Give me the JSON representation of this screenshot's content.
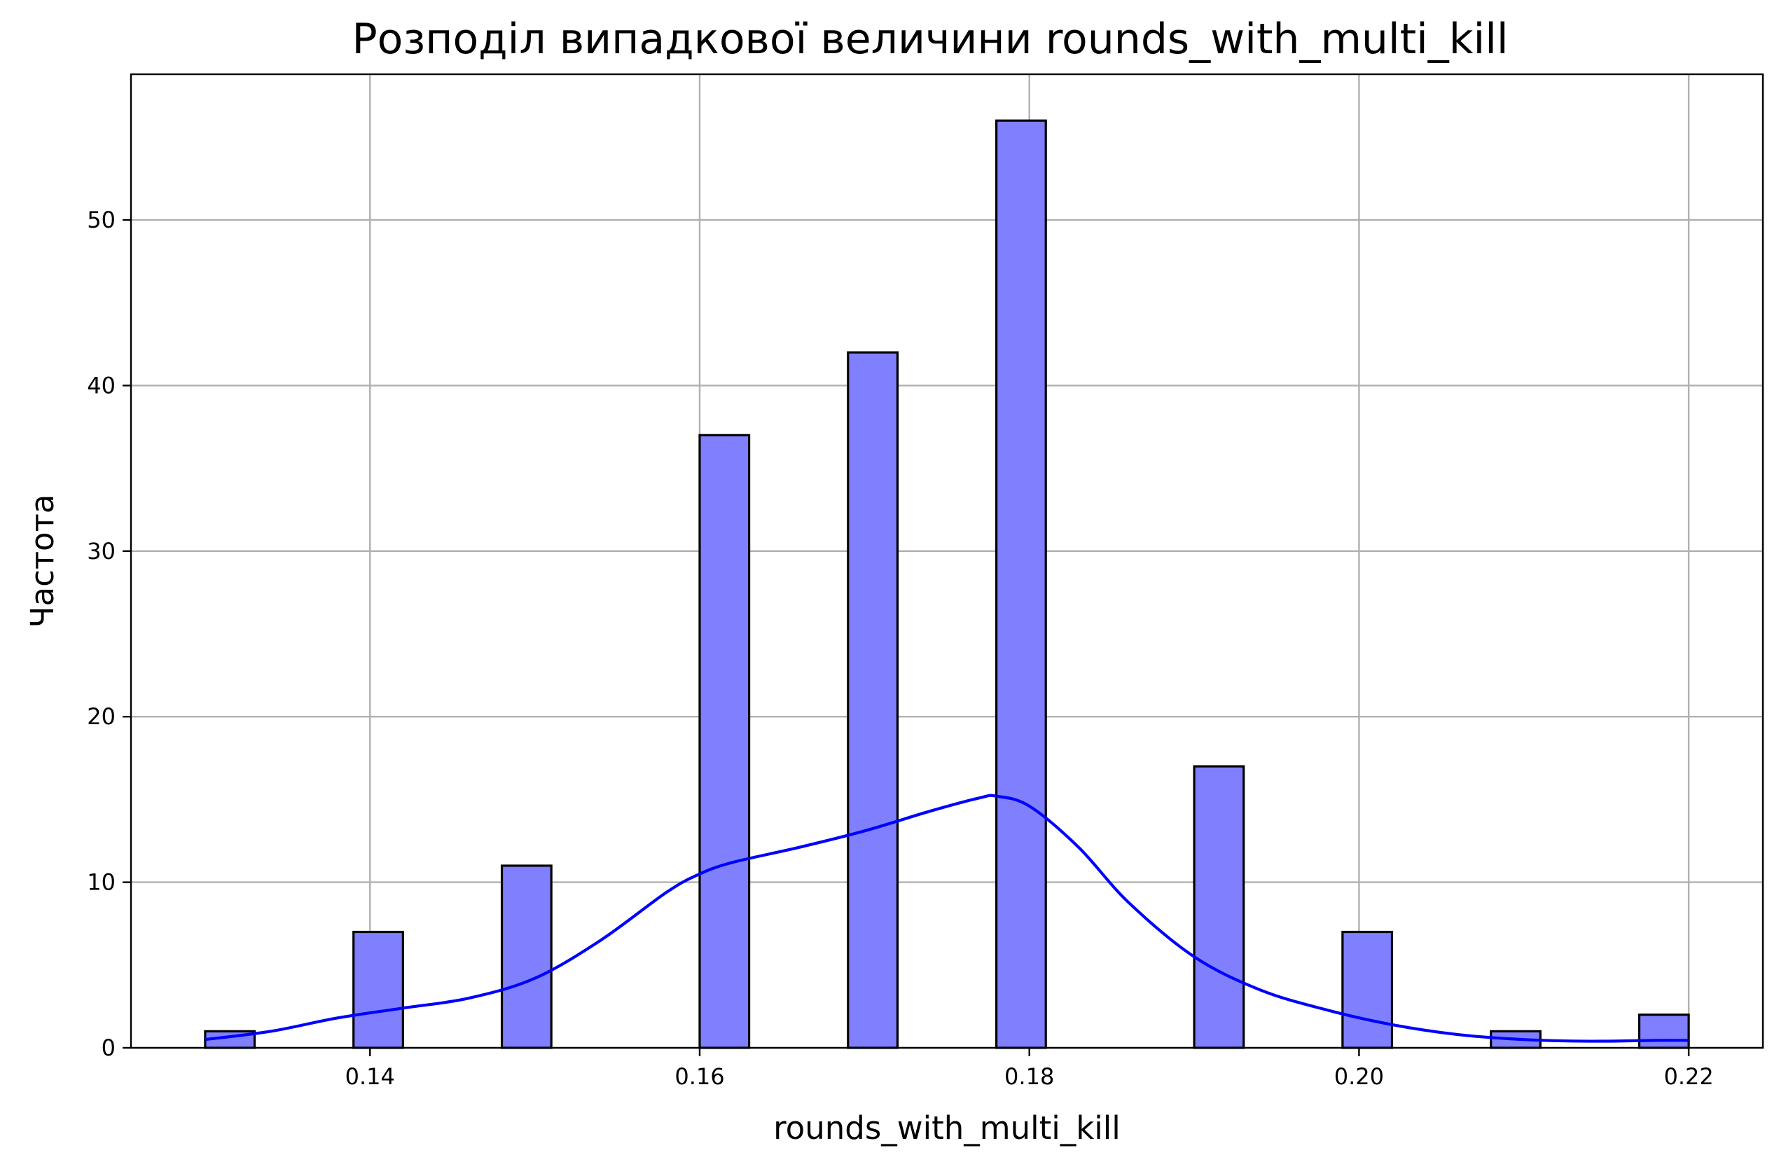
{
  "chart_data": {
    "type": "bar",
    "title": "Розподіл випадкової величини rounds_with_multi_kill",
    "xlabel": "rounds_with_multi_kill",
    "ylabel": "Частота",
    "xlim": [
      0.1255,
      0.2245
    ],
    "ylim": [
      0,
      58.8
    ],
    "x_ticks": [
      0.14,
      0.16,
      0.18,
      0.2,
      0.22
    ],
    "x_tick_labels": [
      "0.14",
      "0.16",
      "0.18",
      "0.20",
      "0.22"
    ],
    "y_ticks": [
      0,
      10,
      20,
      30,
      40,
      50
    ],
    "y_tick_labels": [
      "0",
      "10",
      "20",
      "30",
      "40",
      "50"
    ],
    "grid": true,
    "bin_width": 0.003,
    "bars": [
      {
        "x": 0.13,
        "value": 1
      },
      {
        "x": 0.139,
        "value": 7
      },
      {
        "x": 0.148,
        "value": 11
      },
      {
        "x": 0.16,
        "value": 37
      },
      {
        "x": 0.169,
        "value": 42
      },
      {
        "x": 0.178,
        "value": 56
      },
      {
        "x": 0.19,
        "value": 17
      },
      {
        "x": 0.199,
        "value": 7
      },
      {
        "x": 0.208,
        "value": 1
      },
      {
        "x": 0.217,
        "value": 2
      }
    ],
    "kde": {
      "x": [
        0.13,
        0.134,
        0.138,
        0.142,
        0.146,
        0.15,
        0.154,
        0.158,
        0.16,
        0.162,
        0.166,
        0.17,
        0.174,
        0.177,
        0.178,
        0.18,
        0.183,
        0.186,
        0.19,
        0.194,
        0.198,
        0.202,
        0.206,
        0.21,
        0.214,
        0.218,
        0.22
      ],
      "y": [
        0.5,
        1.0,
        1.8,
        2.4,
        3.0,
        4.2,
        6.5,
        9.4,
        10.5,
        11.2,
        12.1,
        13.1,
        14.3,
        15.1,
        15.2,
        14.6,
        12.1,
        8.8,
        5.5,
        3.5,
        2.3,
        1.4,
        0.8,
        0.5,
        0.4,
        0.45,
        0.45
      ]
    },
    "colors": {
      "bar_fill": "#8080ff",
      "bar_edge": "#000000",
      "kde_line": "#0000ff",
      "grid": "#b0b0b0"
    }
  }
}
